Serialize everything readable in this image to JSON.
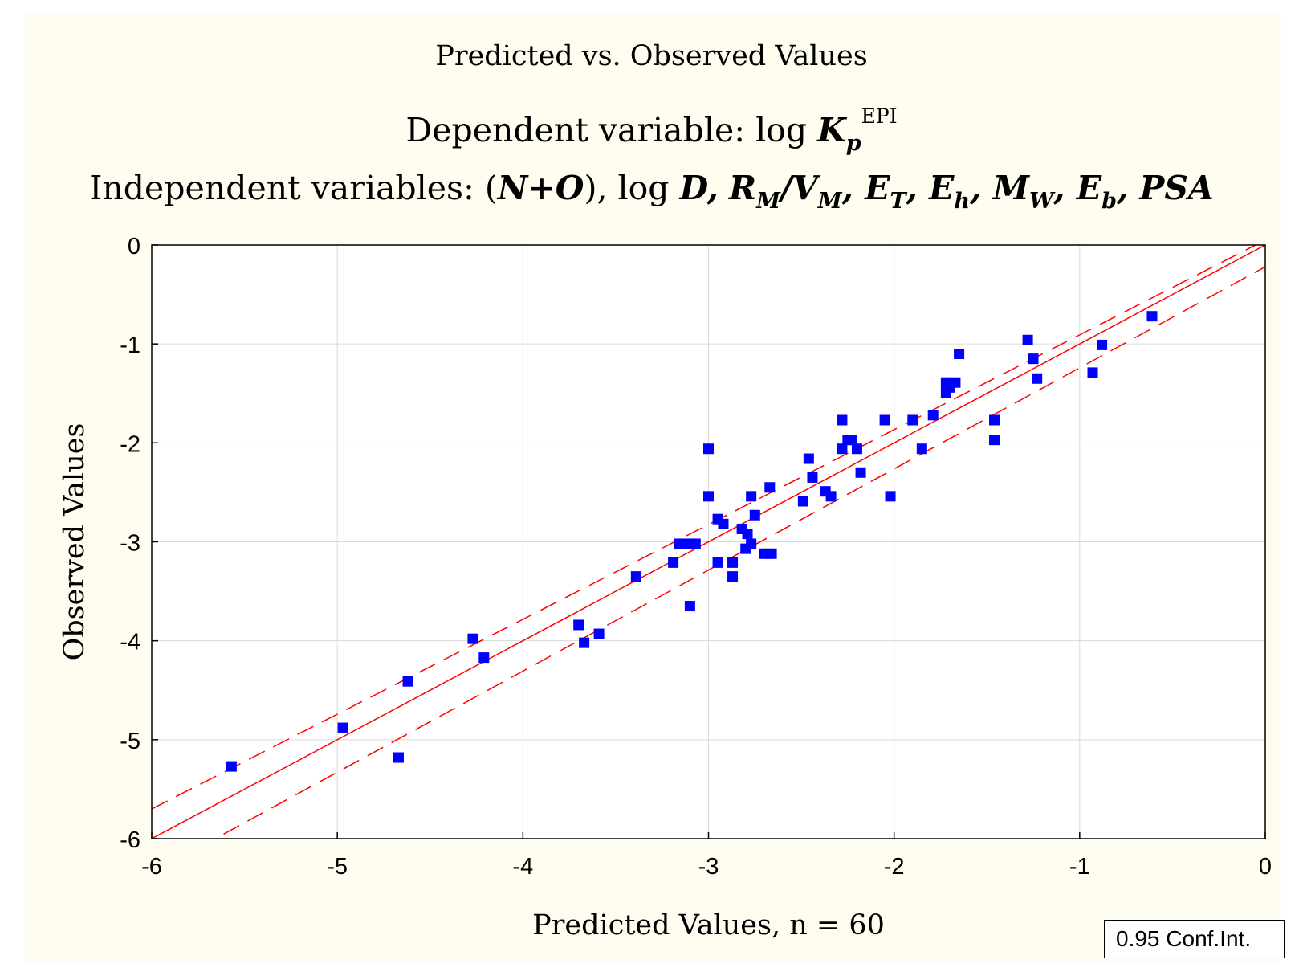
{
  "chart_data": {
    "type": "scatter",
    "title": "Predicted vs. Observed Values",
    "subtitle": {
      "dependent_prefix": "Dependent variable: log ",
      "dependent_var": "K",
      "dependent_var_sub": "p",
      "dependent_var_sup": "EPI",
      "independent_prefix": "Independent variables: (",
      "independent_no": "N+O",
      "independent_after_no": "), log ",
      "independent_D": "D,",
      "independent_R": "R",
      "independent_R_sub": "M",
      "independent_slash": "/V",
      "independent_V_sub": "M",
      "independent_ET": ", E",
      "independent_ET_sub": "T",
      "independent_Eh": ", E",
      "independent_Eh_sub": "h",
      "independent_MW": ", M",
      "independent_MW_sub": "W",
      "independent_Eb": ", E",
      "independent_Eb_sub": "b",
      "independent_PSA": ", PSA"
    },
    "xlabel": "Predicted Values, n = 60",
    "ylabel": "Observed Values",
    "xlim": [
      -6,
      0
    ],
    "ylim": [
      -6,
      0
    ],
    "xticks": [
      -6,
      -5,
      -4,
      -3,
      -2,
      -1,
      0
    ],
    "yticks": [
      0,
      -1,
      -2,
      -3,
      -4,
      -5,
      -6
    ],
    "grid": true,
    "legend": {
      "label": "0.95 Conf.Int.",
      "placement": "bottom-right"
    },
    "colors": {
      "points": "#0000ff",
      "fit_line": "#ff0000",
      "grid": "#d9d9d9",
      "panel_bg": "#fffdf0"
    },
    "fit_line": {
      "slope": 1.0,
      "intercept": 0.0
    },
    "conf_band": {
      "upper": [
        [
          -6,
          -5.7
        ],
        [
          0,
          0.05
        ]
      ],
      "lower": [
        [
          -6,
          -6.35
        ],
        [
          0,
          -0.22
        ]
      ]
    },
    "points": [
      {
        "x": -5.57,
        "y": -5.27
      },
      {
        "x": -4.97,
        "y": -4.88
      },
      {
        "x": -4.67,
        "y": -5.18
      },
      {
        "x": -4.62,
        "y": -4.41
      },
      {
        "x": -4.27,
        "y": -3.98
      },
      {
        "x": -4.21,
        "y": -4.17
      },
      {
        "x": -3.7,
        "y": -3.84
      },
      {
        "x": -3.67,
        "y": -4.02
      },
      {
        "x": -3.59,
        "y": -3.93
      },
      {
        "x": -3.39,
        "y": -3.35
      },
      {
        "x": -3.19,
        "y": -3.21
      },
      {
        "x": -3.16,
        "y": -3.02
      },
      {
        "x": -3.12,
        "y": -3.02
      },
      {
        "x": -3.1,
        "y": -3.65
      },
      {
        "x": -3.07,
        "y": -3.02
      },
      {
        "x": -3.0,
        "y": -2.06
      },
      {
        "x": -3.0,
        "y": -2.54
      },
      {
        "x": -2.95,
        "y": -2.77
      },
      {
        "x": -2.95,
        "y": -3.21
      },
      {
        "x": -2.92,
        "y": -2.82
      },
      {
        "x": -2.87,
        "y": -3.21
      },
      {
        "x": -2.87,
        "y": -3.35
      },
      {
        "x": -2.82,
        "y": -2.87
      },
      {
        "x": -2.8,
        "y": -3.07
      },
      {
        "x": -2.79,
        "y": -2.92
      },
      {
        "x": -2.77,
        "y": -2.54
      },
      {
        "x": -2.77,
        "y": -3.02
      },
      {
        "x": -2.75,
        "y": -2.73
      },
      {
        "x": -2.7,
        "y": -3.12
      },
      {
        "x": -2.67,
        "y": -2.45
      },
      {
        "x": -2.66,
        "y": -3.12
      },
      {
        "x": -2.49,
        "y": -2.59
      },
      {
        "x": -2.46,
        "y": -2.16
      },
      {
        "x": -2.44,
        "y": -2.35
      },
      {
        "x": -2.37,
        "y": -2.49
      },
      {
        "x": -2.34,
        "y": -2.54
      },
      {
        "x": -2.28,
        "y": -1.77
      },
      {
        "x": -2.28,
        "y": -2.06
      },
      {
        "x": -2.25,
        "y": -1.97
      },
      {
        "x": -2.23,
        "y": -1.97
      },
      {
        "x": -2.2,
        "y": -2.06
      },
      {
        "x": -2.18,
        "y": -2.3
      },
      {
        "x": -2.05,
        "y": -1.77
      },
      {
        "x": -2.02,
        "y": -2.54
      },
      {
        "x": -1.9,
        "y": -1.77
      },
      {
        "x": -1.85,
        "y": -2.06
      },
      {
        "x": -1.79,
        "y": -1.72
      },
      {
        "x": -1.72,
        "y": -1.39
      },
      {
        "x": -1.72,
        "y": -1.49
      },
      {
        "x": -1.7,
        "y": -1.44
      },
      {
        "x": -1.67,
        "y": -1.39
      },
      {
        "x": -1.65,
        "y": -1.1
      },
      {
        "x": -1.46,
        "y": -1.77
      },
      {
        "x": -1.46,
        "y": -1.97
      },
      {
        "x": -1.28,
        "y": -0.96
      },
      {
        "x": -1.25,
        "y": -1.15
      },
      {
        "x": -1.23,
        "y": -1.35
      },
      {
        "x": -0.93,
        "y": -1.29
      },
      {
        "x": -0.88,
        "y": -1.01
      },
      {
        "x": -0.61,
        "y": -0.72
      }
    ]
  }
}
